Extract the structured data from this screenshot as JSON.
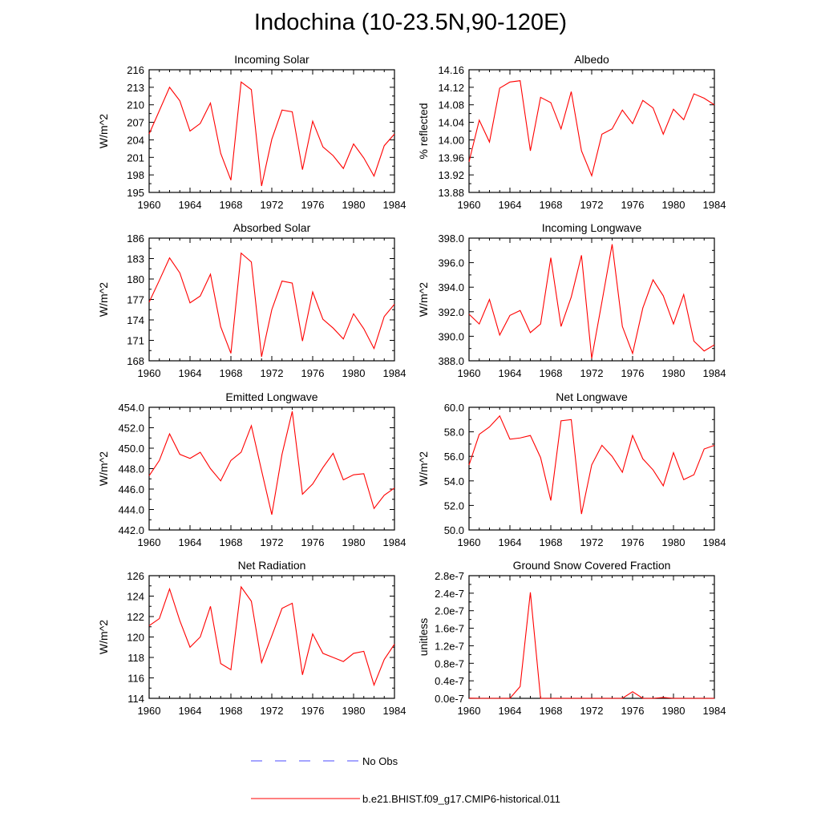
{
  "figure": {
    "title": "Indochina (10-23.5N,90-120E)"
  },
  "legend": {
    "entries": [
      {
        "label": "No Obs",
        "color": "#4a4aff",
        "style": "dashed"
      },
      {
        "label": "b.e21.BHIST.f09_g17.CMIP6-historical.011",
        "color": "#ff0000",
        "style": "solid"
      }
    ]
  },
  "chart_data": [
    {
      "type": "line",
      "title": "Incoming Solar",
      "ylabel": "W/m^2",
      "xlabel": "",
      "xlim": [
        1960,
        1984
      ],
      "ylim": [
        195,
        216
      ],
      "xticks": [
        "1960",
        "1964",
        "1968",
        "1972",
        "1976",
        "1980",
        "1984"
      ],
      "yticks": [
        "195",
        "198",
        "201",
        "204",
        "207",
        "210",
        "213",
        "216"
      ],
      "x": [
        1960,
        1961,
        1962,
        1963,
        1964,
        1965,
        1966,
        1967,
        1968,
        1969,
        1970,
        1971,
        1972,
        1973,
        1974,
        1975,
        1976,
        1977,
        1978,
        1979,
        1980,
        1981,
        1982,
        1983,
        1984
      ],
      "series": [
        {
          "name": "b.e21.BHIST.f09_g17.CMIP6-historical.011",
          "color": "#ff0000",
          "values": [
            205.0,
            209.0,
            213.0,
            210.7,
            205.5,
            206.8,
            210.3,
            201.7,
            197.1,
            213.9,
            212.6,
            196.1,
            204.1,
            209.1,
            208.8,
            198.9,
            207.2,
            202.8,
            201.3,
            199.1,
            203.3,
            200.9,
            197.8,
            203.0,
            205.0
          ]
        }
      ]
    },
    {
      "type": "line",
      "title": "Albedo",
      "ylabel": "% reflected",
      "xlabel": "",
      "xlim": [
        1960,
        1984
      ],
      "ylim": [
        13.88,
        14.16
      ],
      "xticks": [
        "1960",
        "1964",
        "1968",
        "1972",
        "1976",
        "1980",
        "1984"
      ],
      "yticks": [
        "13.88",
        "13.92",
        "13.96",
        "14.00",
        "14.04",
        "14.08",
        "14.12",
        "14.16"
      ],
      "x": [
        1960,
        1961,
        1962,
        1963,
        1964,
        1965,
        1966,
        1967,
        1968,
        1969,
        1970,
        1971,
        1972,
        1973,
        1974,
        1975,
        1976,
        1977,
        1978,
        1979,
        1980,
        1981,
        1982,
        1983,
        1984
      ],
      "series": [
        {
          "name": "b.e21.BHIST.f09_g17.CMIP6-historical.011",
          "color": "#ff0000",
          "values": [
            13.95,
            14.045,
            13.995,
            14.118,
            14.132,
            14.135,
            13.975,
            14.097,
            14.085,
            14.025,
            14.11,
            13.975,
            13.918,
            14.013,
            14.025,
            14.068,
            14.037,
            14.09,
            14.073,
            14.013,
            14.07,
            14.046,
            14.105,
            14.095,
            14.08
          ]
        }
      ]
    },
    {
      "type": "line",
      "title": "Absorbed Solar",
      "ylabel": "W/m^2",
      "xlabel": "",
      "xlim": [
        1960,
        1984
      ],
      "ylim": [
        168,
        186
      ],
      "xticks": [
        "1960",
        "1964",
        "1968",
        "1972",
        "1976",
        "1980",
        "1984"
      ],
      "yticks": [
        "168",
        "171",
        "174",
        "177",
        "180",
        "183",
        "186"
      ],
      "x": [
        1960,
        1961,
        1962,
        1963,
        1964,
        1965,
        1966,
        1967,
        1968,
        1969,
        1970,
        1971,
        1972,
        1973,
        1974,
        1975,
        1976,
        1977,
        1978,
        1979,
        1980,
        1981,
        1982,
        1983,
        1984
      ],
      "series": [
        {
          "name": "b.e21.BHIST.f09_g17.CMIP6-historical.011",
          "color": "#ff0000",
          "values": [
            176.6,
            179.8,
            183.1,
            180.9,
            176.5,
            177.5,
            180.7,
            173.0,
            169.1,
            183.8,
            182.5,
            168.6,
            175.5,
            179.7,
            179.4,
            170.9,
            178.1,
            174.1,
            172.8,
            171.2,
            174.9,
            172.7,
            169.8,
            174.5,
            176.3
          ]
        }
      ]
    },
    {
      "type": "line",
      "title": "Incoming Longwave",
      "ylabel": "W/m^2",
      "xlabel": "",
      "xlim": [
        1960,
        1984
      ],
      "ylim": [
        388.0,
        398.0
      ],
      "xticks": [
        "1960",
        "1964",
        "1968",
        "1972",
        "1976",
        "1980",
        "1984"
      ],
      "yticks": [
        "388.0",
        "390.0",
        "392.0",
        "394.0",
        "396.0",
        "398.0"
      ],
      "x": [
        1960,
        1961,
        1962,
        1963,
        1964,
        1965,
        1966,
        1967,
        1968,
        1969,
        1970,
        1971,
        1972,
        1973,
        1974,
        1975,
        1976,
        1977,
        1978,
        1979,
        1980,
        1981,
        1982,
        1983,
        1984
      ],
      "series": [
        {
          "name": "b.e21.BHIST.f09_g17.CMIP6-historical.011",
          "color": "#ff0000",
          "values": [
            391.8,
            391.0,
            393.0,
            390.1,
            391.7,
            392.1,
            390.3,
            391.0,
            396.4,
            390.8,
            393.2,
            396.6,
            388.2,
            392.8,
            397.5,
            390.8,
            388.6,
            392.3,
            394.6,
            393.3,
            391.0,
            393.4,
            389.6,
            388.8,
            389.3
          ]
        }
      ]
    },
    {
      "type": "line",
      "title": "Emitted Longwave",
      "ylabel": "W/m^2",
      "xlabel": "",
      "xlim": [
        1960,
        1984
      ],
      "ylim": [
        442.0,
        454.0
      ],
      "xticks": [
        "1960",
        "1964",
        "1968",
        "1972",
        "1976",
        "1980",
        "1984"
      ],
      "yticks": [
        "442.0",
        "444.0",
        "446.0",
        "448.0",
        "450.0",
        "452.0",
        "454.0"
      ],
      "x": [
        1960,
        1961,
        1962,
        1963,
        1964,
        1965,
        1966,
        1967,
        1968,
        1969,
        1970,
        1971,
        1972,
        1973,
        1974,
        1975,
        1976,
        1977,
        1978,
        1979,
        1980,
        1981,
        1982,
        1983,
        1984
      ],
      "series": [
        {
          "name": "b.e21.BHIST.f09_g17.CMIP6-historical.011",
          "color": "#ff0000",
          "values": [
            447.3,
            448.8,
            451.4,
            449.4,
            449.0,
            449.6,
            448.0,
            446.8,
            448.8,
            449.6,
            452.2,
            447.8,
            443.5,
            449.4,
            453.6,
            445.5,
            446.5,
            448.1,
            449.5,
            446.9,
            447.4,
            447.5,
            444.1,
            445.4,
            446.1
          ]
        }
      ]
    },
    {
      "type": "line",
      "title": "Net Longwave",
      "ylabel": "W/m^2",
      "xlabel": "",
      "xlim": [
        1960,
        1984
      ],
      "ylim": [
        50.0,
        60.0
      ],
      "xticks": [
        "1960",
        "1964",
        "1968",
        "1972",
        "1976",
        "1980",
        "1984"
      ],
      "yticks": [
        "50.0",
        "52.0",
        "54.0",
        "56.0",
        "58.0",
        "60.0"
      ],
      "x": [
        1960,
        1961,
        1962,
        1963,
        1964,
        1965,
        1966,
        1967,
        1968,
        1969,
        1970,
        1971,
        1972,
        1973,
        1974,
        1975,
        1976,
        1977,
        1978,
        1979,
        1980,
        1981,
        1982,
        1983,
        1984
      ],
      "series": [
        {
          "name": "b.e21.BHIST.f09_g17.CMIP6-historical.011",
          "color": "#ff0000",
          "values": [
            55.3,
            57.8,
            58.4,
            59.3,
            57.4,
            57.5,
            57.7,
            55.9,
            52.4,
            58.9,
            59.0,
            51.3,
            55.3,
            56.9,
            56.0,
            54.7,
            57.7,
            55.8,
            54.9,
            53.6,
            56.3,
            54.1,
            54.5,
            56.6,
            56.9
          ]
        }
      ]
    },
    {
      "type": "line",
      "title": "Net Radiation",
      "ylabel": "W/m^2",
      "xlabel": "",
      "xlim": [
        1960,
        1984
      ],
      "ylim": [
        114,
        126
      ],
      "xticks": [
        "1960",
        "1964",
        "1968",
        "1972",
        "1976",
        "1980",
        "1984"
      ],
      "yticks": [
        "114",
        "116",
        "118",
        "120",
        "122",
        "124",
        "126"
      ],
      "x": [
        1960,
        1961,
        1962,
        1963,
        1964,
        1965,
        1966,
        1967,
        1968,
        1969,
        1970,
        1971,
        1972,
        1973,
        1974,
        1975,
        1976,
        1977,
        1978,
        1979,
        1980,
        1981,
        1982,
        1983,
        1984
      ],
      "series": [
        {
          "name": "b.e21.BHIST.f09_g17.CMIP6-historical.011",
          "color": "#ff0000",
          "values": [
            121.1,
            121.8,
            124.7,
            121.6,
            119.0,
            120.0,
            123.0,
            117.4,
            116.8,
            124.9,
            123.5,
            117.5,
            120.1,
            122.8,
            123.3,
            116.3,
            120.3,
            118.4,
            118.0,
            117.6,
            118.4,
            118.6,
            115.3,
            117.8,
            119.3
          ]
        }
      ]
    },
    {
      "type": "line",
      "title": "Ground Snow Covered Fraction",
      "ylabel": "unitless",
      "xlabel": "",
      "xlim": [
        1960,
        1984
      ],
      "ylim": [
        0,
        2.8e-07
      ],
      "xticks": [
        "1960",
        "1964",
        "1968",
        "1972",
        "1976",
        "1980",
        "1984"
      ],
      "yticks": [
        "0.0e-7",
        "0.4e-7",
        "0.8e-7",
        "1.2e-7",
        "1.6e-7",
        "2.0e-7",
        "2.4e-7",
        "2.8e-7"
      ],
      "x": [
        1960,
        1961,
        1962,
        1963,
        1964,
        1965,
        1966,
        1967,
        1968,
        1969,
        1970,
        1971,
        1972,
        1973,
        1974,
        1975,
        1976,
        1977,
        1978,
        1979,
        1980,
        1981,
        1982,
        1983,
        1984
      ],
      "series": [
        {
          "name": "b.e21.BHIST.f09_g17.CMIP6-historical.011",
          "color": "#ff0000",
          "values": [
            3e-10,
            0,
            0,
            0,
            0,
            2.7e-08,
            2.42e-07,
            0,
            0,
            0,
            0,
            0,
            0,
            0,
            0,
            0,
            1.5e-08,
            0,
            0,
            2e-09,
            0,
            0,
            0,
            0,
            0
          ]
        }
      ]
    }
  ]
}
